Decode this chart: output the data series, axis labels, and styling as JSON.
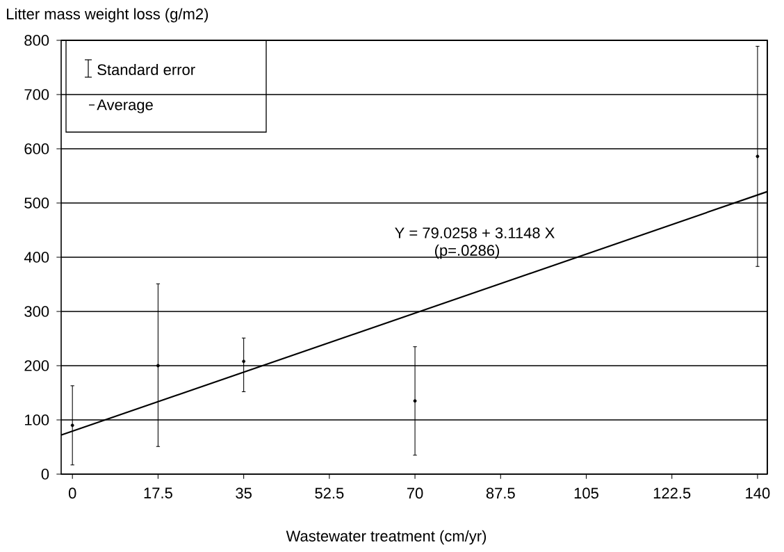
{
  "chart_data": {
    "type": "scatter",
    "xlabel": "Wastewater treatment (cm/yr)",
    "ylabel": "Litter mass weight loss (g/m2)",
    "annotations": [
      "Standard error",
      "Y = 79.0258 + 3.1148 X",
      "(p=.0286)"
    ],
    "x": [
      0,
      17.5,
      35,
      70,
      140
    ],
    "series": [
      {
        "name": "Average",
        "color": "#000000",
        "values": [
          90,
          200,
          208,
          135,
          586
        ],
        "errors": [
          [
            17,
            163
          ],
          [
            51,
            351
          ],
          [
            152,
            251
          ],
          [
            35,
            235
          ],
          [
            383,
            789
          ]
        ]
      },
      {
        "type": "line",
        "color": "#000000",
        "x": [
          -2.3,
          142
        ],
        "values": [
          72,
          521
        ]
      }
    ],
    "xlim": [
      -2.3,
      142
    ],
    "ylim": [
      0,
      800
    ],
    "xticks": [
      0,
      17.5,
      35,
      52.5,
      70,
      87.5,
      105,
      122.5,
      140
    ],
    "yticks": [
      0,
      100,
      200,
      300,
      400,
      500,
      600,
      700,
      800
    ],
    "grid": "y",
    "legend": "top left"
  }
}
